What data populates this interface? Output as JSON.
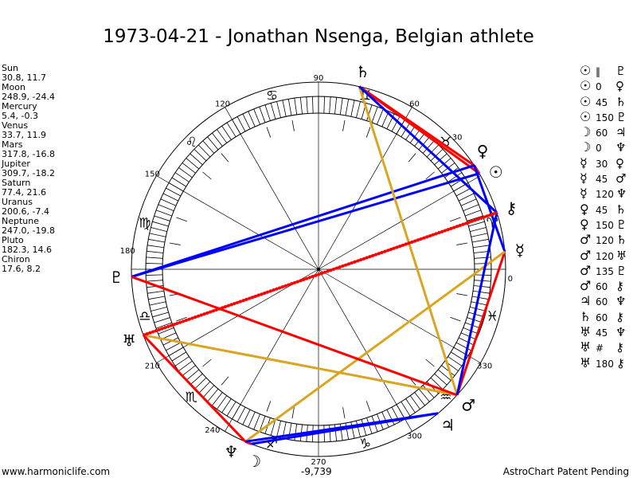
{
  "title": "1973-04-21 - Jonathan Nsenga, Belgian athlete",
  "planets": [
    {
      "name": "Sun",
      "coords": "30.8, 11.7",
      "lon": 30.8,
      "glyph": "☉"
    },
    {
      "name": "Moon",
      "coords": "248.9, -24.4",
      "lon": 248.9,
      "glyph": "☽"
    },
    {
      "name": "Mercury",
      "coords": "5.4, -0.3",
      "lon": 5.4,
      "glyph": "☿"
    },
    {
      "name": "Venus",
      "coords": "33.7, 11.9",
      "lon": 33.7,
      "glyph": "♀"
    },
    {
      "name": "Mars",
      "coords": "317.8, -16.8",
      "lon": 317.8,
      "glyph": "♂"
    },
    {
      "name": "Jupiter",
      "coords": "309.7, -18.2",
      "lon": 309.7,
      "glyph": "♃"
    },
    {
      "name": "Saturn",
      "coords": "77.4, 21.6",
      "lon": 77.4,
      "glyph": "♄"
    },
    {
      "name": "Uranus",
      "coords": "200.6, -7.4",
      "lon": 200.6,
      "glyph": "♅"
    },
    {
      "name": "Neptune",
      "coords": "247.0, -19.8",
      "lon": 247.0,
      "glyph": "♆"
    },
    {
      "name": "Pluto",
      "coords": "182.3, 14.6",
      "lon": 182.3,
      "glyph": "♇"
    },
    {
      "name": "Chiron",
      "coords": "17.6, 8.2",
      "lon": 17.6,
      "glyph": "⚷"
    }
  ],
  "aspects": [
    {
      "p1": "Sun",
      "type": "‖",
      "p2": "Pluto",
      "g1": "☉",
      "g2": "♇"
    },
    {
      "p1": "Sun",
      "type": "0",
      "p2": "Venus",
      "g1": "☉",
      "g2": "♀"
    },
    {
      "p1": "Sun",
      "type": "45",
      "p2": "Saturn",
      "g1": "☉",
      "g2": "♄"
    },
    {
      "p1": "Sun",
      "type": "150",
      "p2": "Pluto",
      "g1": "☉",
      "g2": "♇"
    },
    {
      "p1": "Moon",
      "type": "60",
      "p2": "Jupiter",
      "g1": "☽",
      "g2": "♃"
    },
    {
      "p1": "Moon",
      "type": "0",
      "p2": "Neptune",
      "g1": "☽",
      "g2": "♆"
    },
    {
      "p1": "Mercury",
      "type": "30",
      "p2": "Venus",
      "g1": "☿",
      "g2": "♀"
    },
    {
      "p1": "Mercury",
      "type": "45",
      "p2": "Mars",
      "g1": "☿",
      "g2": "♂"
    },
    {
      "p1": "Mercury",
      "type": "120",
      "p2": "Neptune",
      "g1": "☿",
      "g2": "♆"
    },
    {
      "p1": "Venus",
      "type": "45",
      "p2": "Saturn",
      "g1": "♀",
      "g2": "♄"
    },
    {
      "p1": "Venus",
      "type": "150",
      "p2": "Pluto",
      "g1": "♀",
      "g2": "♇"
    },
    {
      "p1": "Mars",
      "type": "120",
      "p2": "Saturn",
      "g1": "♂",
      "g2": "♄"
    },
    {
      "p1": "Mars",
      "type": "120",
      "p2": "Uranus",
      "g1": "♂",
      "g2": "♅"
    },
    {
      "p1": "Mars",
      "type": "135",
      "p2": "Pluto",
      "g1": "♂",
      "g2": "♇"
    },
    {
      "p1": "Mars",
      "type": "60",
      "p2": "Chiron",
      "g1": "♂",
      "g2": "⚷"
    },
    {
      "p1": "Jupiter",
      "type": "60",
      "p2": "Neptune",
      "g1": "♃",
      "g2": "♆"
    },
    {
      "p1": "Saturn",
      "type": "60",
      "p2": "Chiron",
      "g1": "♄",
      "g2": "⚷"
    },
    {
      "p1": "Uranus",
      "type": "45",
      "p2": "Neptune",
      "g1": "♅",
      "g2": "♆"
    },
    {
      "p1": "Uranus",
      "type": "#",
      "p2": "Chiron",
      "g1": "♅",
      "g2": "⚷"
    },
    {
      "p1": "Uranus",
      "type": "180",
      "p2": "Chiron",
      "g1": "♅",
      "g2": "⚷"
    }
  ],
  "aspect_colors": {
    "0": "#ff0000",
    "30": "#0000ff",
    "45": "#ff0000",
    "60": "#0000ff",
    "120": "#daa520",
    "135": "#ff0000",
    "150": "#0000ff",
    "180": "#ff0000",
    "#": "#ff0000"
  },
  "degree_labels": [
    "0",
    "30",
    "60",
    "90",
    "120",
    "150",
    "180",
    "210",
    "240",
    "270",
    "300",
    "330"
  ],
  "signs": [
    "♈",
    "♉",
    "♊",
    "♋",
    "♌",
    "♍",
    "♎",
    "♏",
    "♐",
    "♑",
    "♒",
    "♓"
  ],
  "bottom_value": "-9,739",
  "footer_left": "www.harmoniclife.com",
  "footer_right": "AstroChart Patent Pending"
}
